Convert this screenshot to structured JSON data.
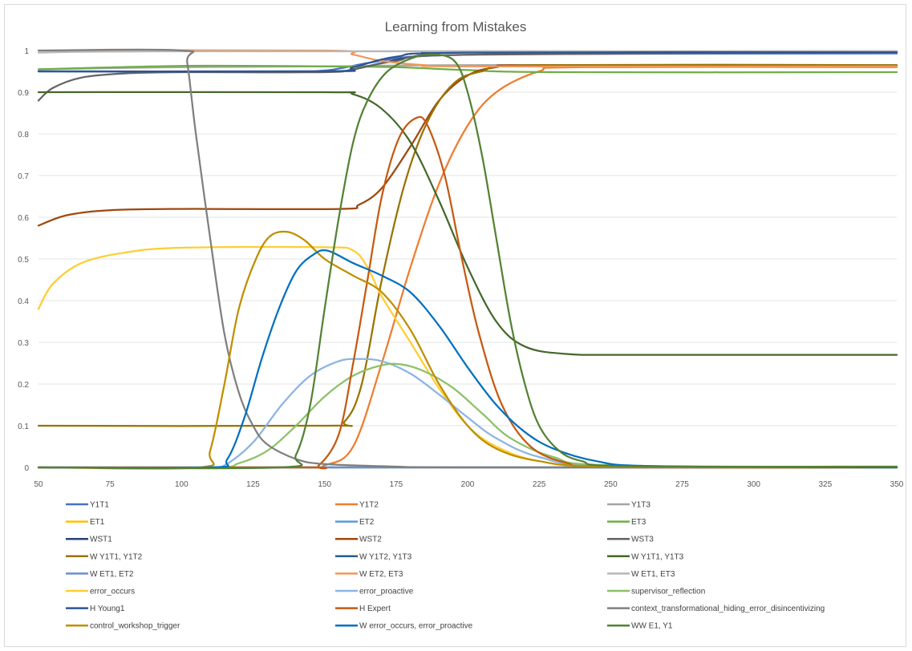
{
  "chart_data": {
    "type": "line",
    "title": "Learning from Mistakes",
    "xlabel": "",
    "ylabel": "",
    "xlim": [
      50,
      350
    ],
    "ylim": [
      0,
      1
    ],
    "x_ticks": [
      "50",
      "75",
      "100",
      "125",
      "150",
      "175",
      "200",
      "225",
      "250",
      "275",
      "300",
      "325",
      "350"
    ],
    "y_ticks": [
      "0",
      "0.1",
      "0.2",
      "0.3",
      "0.4",
      "0.5",
      "0.6",
      "0.7",
      "0.8",
      "0.9",
      "1"
    ],
    "grid": "horizontal",
    "legend_position": "bottom",
    "series": [
      {
        "name": "Y1T1",
        "color": "#4472C4",
        "points": [
          [
            50,
            0.95
          ],
          [
            130,
            0.95
          ],
          [
            150,
            0.952
          ],
          [
            165,
            0.97
          ],
          [
            180,
            0.985
          ],
          [
            200,
            0.99
          ],
          [
            230,
            0.992
          ],
          [
            350,
            0.993
          ]
        ]
      },
      {
        "name": "Y1T2",
        "color": "#ED7D31",
        "points": [
          [
            50,
            0
          ],
          [
            140,
            0
          ],
          [
            150,
            0.005
          ],
          [
            160,
            0.05
          ],
          [
            170,
            0.25
          ],
          [
            180,
            0.48
          ],
          [
            190,
            0.68
          ],
          [
            200,
            0.82
          ],
          [
            210,
            0.9
          ],
          [
            225,
            0.95
          ],
          [
            240,
            0.96
          ],
          [
            350,
            0.96
          ]
        ]
      },
      {
        "name": "Y1T3",
        "color": "#A5A5A5",
        "points": [
          [
            50,
            0.955
          ],
          [
            100,
            0.96
          ],
          [
            150,
            0.962
          ],
          [
            200,
            0.965
          ],
          [
            350,
            0.965
          ]
        ]
      },
      {
        "name": "ET1",
        "color": "#FFC000",
        "points": [
          [
            50,
            0
          ],
          [
            350,
            0
          ]
        ]
      },
      {
        "name": "ET2",
        "color": "#5B9BD5",
        "points": [
          [
            50,
            0
          ],
          [
            350,
            0
          ]
        ]
      },
      {
        "name": "ET3",
        "color": "#70AD47",
        "points": [
          [
            50,
            0.955
          ],
          [
            100,
            0.963
          ],
          [
            150,
            0.962
          ],
          [
            175,
            0.96
          ],
          [
            200,
            0.953
          ],
          [
            230,
            0.948
          ],
          [
            350,
            0.948
          ]
        ]
      },
      {
        "name": "WST1",
        "color": "#264478",
        "points": [
          [
            50,
            0.95
          ],
          [
            150,
            0.95
          ],
          [
            160,
            0.955
          ],
          [
            170,
            0.97
          ],
          [
            185,
            0.99
          ],
          [
            200,
            0.997
          ],
          [
            350,
            0.998
          ]
        ]
      },
      {
        "name": "WST2",
        "color": "#9E480E",
        "points": [
          [
            50,
            0.58
          ],
          [
            60,
            0.605
          ],
          [
            75,
            0.617
          ],
          [
            100,
            0.62
          ],
          [
            155,
            0.62
          ],
          [
            162,
            0.63
          ],
          [
            170,
            0.67
          ],
          [
            180,
            0.77
          ],
          [
            190,
            0.88
          ],
          [
            200,
            0.94
          ],
          [
            210,
            0.96
          ],
          [
            225,
            0.965
          ],
          [
            350,
            0.963
          ]
        ]
      },
      {
        "name": "WST3",
        "color": "#636363",
        "points": [
          [
            50,
            0.88
          ],
          [
            55,
            0.91
          ],
          [
            65,
            0.935
          ],
          [
            80,
            0.945
          ],
          [
            100,
            0.948
          ],
          [
            150,
            0.948
          ],
          [
            160,
            0.955
          ],
          [
            175,
            0.975
          ],
          [
            200,
            0.99
          ],
          [
            350,
            0.995
          ]
        ]
      },
      {
        "name": "W Y1T1, Y1T2",
        "color": "#997300",
        "points": [
          [
            50,
            0.1
          ],
          [
            150,
            0.1
          ],
          [
            157,
            0.11
          ],
          [
            163,
            0.2
          ],
          [
            170,
            0.45
          ],
          [
            178,
            0.68
          ],
          [
            186,
            0.83
          ],
          [
            195,
            0.92
          ],
          [
            205,
            0.95
          ],
          [
            225,
            0.965
          ],
          [
            350,
            0.965
          ]
        ]
      },
      {
        "name": "W Y1T2, Y1T3",
        "color": "#255E91",
        "points": [
          [
            50,
            0
          ],
          [
            350,
            0
          ]
        ]
      },
      {
        "name": "W Y1T1, Y1T3",
        "color": "#43682B",
        "points": [
          [
            50,
            0.9
          ],
          [
            150,
            0.9
          ],
          [
            160,
            0.895
          ],
          [
            170,
            0.86
          ],
          [
            180,
            0.78
          ],
          [
            190,
            0.64
          ],
          [
            200,
            0.48
          ],
          [
            210,
            0.35
          ],
          [
            220,
            0.29
          ],
          [
            235,
            0.272
          ],
          [
            260,
            0.27
          ],
          [
            350,
            0.27
          ]
        ]
      },
      {
        "name": "W ET1, ET2",
        "color": "#698ED0",
        "points": [
          [
            50,
            0
          ],
          [
            350,
            0
          ]
        ]
      },
      {
        "name": "W ET2, ET3",
        "color": "#F1975A",
        "points": [
          [
            50,
            1.0
          ],
          [
            150,
            1.0
          ],
          [
            160,
            0.99
          ],
          [
            170,
            0.975
          ],
          [
            185,
            0.965
          ],
          [
            200,
            0.962
          ],
          [
            350,
            0.962
          ]
        ]
      },
      {
        "name": "W ET1, ET3",
        "color": "#B7B7B7",
        "points": [
          [
            50,
            0.995
          ],
          [
            100,
            0.998
          ],
          [
            350,
            0.998
          ]
        ]
      },
      {
        "name": "error_occurs",
        "color": "#FFCD33",
        "points": [
          [
            50,
            0.38
          ],
          [
            55,
            0.44
          ],
          [
            65,
            0.49
          ],
          [
            80,
            0.515
          ],
          [
            100,
            0.527
          ],
          [
            150,
            0.528
          ],
          [
            160,
            0.52
          ],
          [
            165,
            0.48
          ],
          [
            170,
            0.41
          ],
          [
            180,
            0.3
          ],
          [
            190,
            0.19
          ],
          [
            200,
            0.1
          ],
          [
            210,
            0.05
          ],
          [
            225,
            0.015
          ],
          [
            250,
            0.002
          ],
          [
            350,
            0
          ]
        ]
      },
      {
        "name": "error_proactive",
        "color": "#8CB4E2",
        "points": [
          [
            50,
            0
          ],
          [
            108,
            0
          ],
          [
            115,
            0.005
          ],
          [
            125,
            0.06
          ],
          [
            135,
            0.15
          ],
          [
            145,
            0.22
          ],
          [
            155,
            0.255
          ],
          [
            162,
            0.26
          ],
          [
            170,
            0.255
          ],
          [
            180,
            0.225
          ],
          [
            190,
            0.175
          ],
          [
            200,
            0.12
          ],
          [
            210,
            0.07
          ],
          [
            225,
            0.025
          ],
          [
            250,
            0.003
          ],
          [
            350,
            0
          ]
        ]
      },
      {
        "name": "supervisor_reflection",
        "color": "#8CC168",
        "points": [
          [
            50,
            0
          ],
          [
            110,
            0
          ],
          [
            120,
            0.01
          ],
          [
            130,
            0.04
          ],
          [
            140,
            0.1
          ],
          [
            150,
            0.17
          ],
          [
            160,
            0.22
          ],
          [
            170,
            0.245
          ],
          [
            177,
            0.247
          ],
          [
            185,
            0.23
          ],
          [
            195,
            0.19
          ],
          [
            205,
            0.13
          ],
          [
            215,
            0.07
          ],
          [
            230,
            0.025
          ],
          [
            250,
            0.005
          ],
          [
            350,
            0
          ]
        ]
      },
      {
        "name": "H Young1",
        "color": "#2F5597",
        "points": [
          [
            50,
            0.95
          ],
          [
            150,
            0.95
          ],
          [
            160,
            0.96
          ],
          [
            175,
            0.985
          ],
          [
            200,
            0.995
          ],
          [
            350,
            0.996
          ]
        ]
      },
      {
        "name": "H Expert",
        "color": "#C55A11",
        "points": [
          [
            50,
            0
          ],
          [
            142,
            0
          ],
          [
            148,
            0.005
          ],
          [
            155,
            0.08
          ],
          [
            160,
            0.25
          ],
          [
            165,
            0.45
          ],
          [
            170,
            0.65
          ],
          [
            176,
            0.79
          ],
          [
            182,
            0.838
          ],
          [
            186,
            0.82
          ],
          [
            192,
            0.7
          ],
          [
            198,
            0.5
          ],
          [
            204,
            0.32
          ],
          [
            212,
            0.15
          ],
          [
            222,
            0.05
          ],
          [
            235,
            0.01
          ],
          [
            250,
            0
          ],
          [
            350,
            0
          ]
        ]
      },
      {
        "name": "context_transformational_hiding_error_disincentivizing",
        "color": "#7F7F7F",
        "points": [
          [
            50,
            1.0
          ],
          [
            100,
            1.0
          ],
          [
            102,
            0.97
          ],
          [
            105,
            0.8
          ],
          [
            110,
            0.55
          ],
          [
            115,
            0.32
          ],
          [
            120,
            0.18
          ],
          [
            125,
            0.1
          ],
          [
            130,
            0.055
          ],
          [
            140,
            0.02
          ],
          [
            150,
            0.008
          ],
          [
            175,
            0.002
          ],
          [
            200,
            0
          ],
          [
            350,
            0
          ]
        ]
      },
      {
        "name": "control_workshop_trigger",
        "color": "#BF8F00",
        "points": [
          [
            50,
            0
          ],
          [
            106,
            0
          ],
          [
            110,
            0.04
          ],
          [
            115,
            0.2
          ],
          [
            120,
            0.38
          ],
          [
            126,
            0.5
          ],
          [
            131,
            0.555
          ],
          [
            137,
            0.565
          ],
          [
            143,
            0.545
          ],
          [
            150,
            0.5
          ],
          [
            160,
            0.46
          ],
          [
            170,
            0.42
          ],
          [
            180,
            0.33
          ],
          [
            190,
            0.2
          ],
          [
            200,
            0.1
          ],
          [
            210,
            0.045
          ],
          [
            225,
            0.015
          ],
          [
            250,
            0.002
          ],
          [
            350,
            0
          ]
        ]
      },
      {
        "name": "W error_occurs, error_proactive",
        "color": "#0070C0",
        "points": [
          [
            50,
            0
          ],
          [
            110,
            0
          ],
          [
            116,
            0.02
          ],
          [
            122,
            0.12
          ],
          [
            128,
            0.26
          ],
          [
            134,
            0.38
          ],
          [
            140,
            0.47
          ],
          [
            146,
            0.51
          ],
          [
            151,
            0.52
          ],
          [
            160,
            0.49
          ],
          [
            170,
            0.46
          ],
          [
            180,
            0.42
          ],
          [
            190,
            0.34
          ],
          [
            200,
            0.24
          ],
          [
            210,
            0.15
          ],
          [
            220,
            0.085
          ],
          [
            230,
            0.045
          ],
          [
            245,
            0.015
          ],
          [
            265,
            0.003
          ],
          [
            350,
            0
          ]
        ]
      },
      {
        "name": "WW E1, Y1",
        "color": "#548235",
        "points": [
          [
            50,
            0
          ],
          [
            134,
            0
          ],
          [
            140,
            0.03
          ],
          [
            145,
            0.15
          ],
          [
            150,
            0.38
          ],
          [
            155,
            0.6
          ],
          [
            160,
            0.78
          ],
          [
            165,
            0.88
          ],
          [
            172,
            0.95
          ],
          [
            182,
            0.985
          ],
          [
            190,
            0.99
          ],
          [
            196,
            0.97
          ],
          [
            200,
            0.9
          ],
          [
            205,
            0.75
          ],
          [
            210,
            0.55
          ],
          [
            215,
            0.35
          ],
          [
            220,
            0.2
          ],
          [
            225,
            0.1
          ],
          [
            232,
            0.04
          ],
          [
            240,
            0.015
          ],
          [
            255,
            0.003
          ],
          [
            350,
            0.002
          ]
        ]
      }
    ]
  }
}
